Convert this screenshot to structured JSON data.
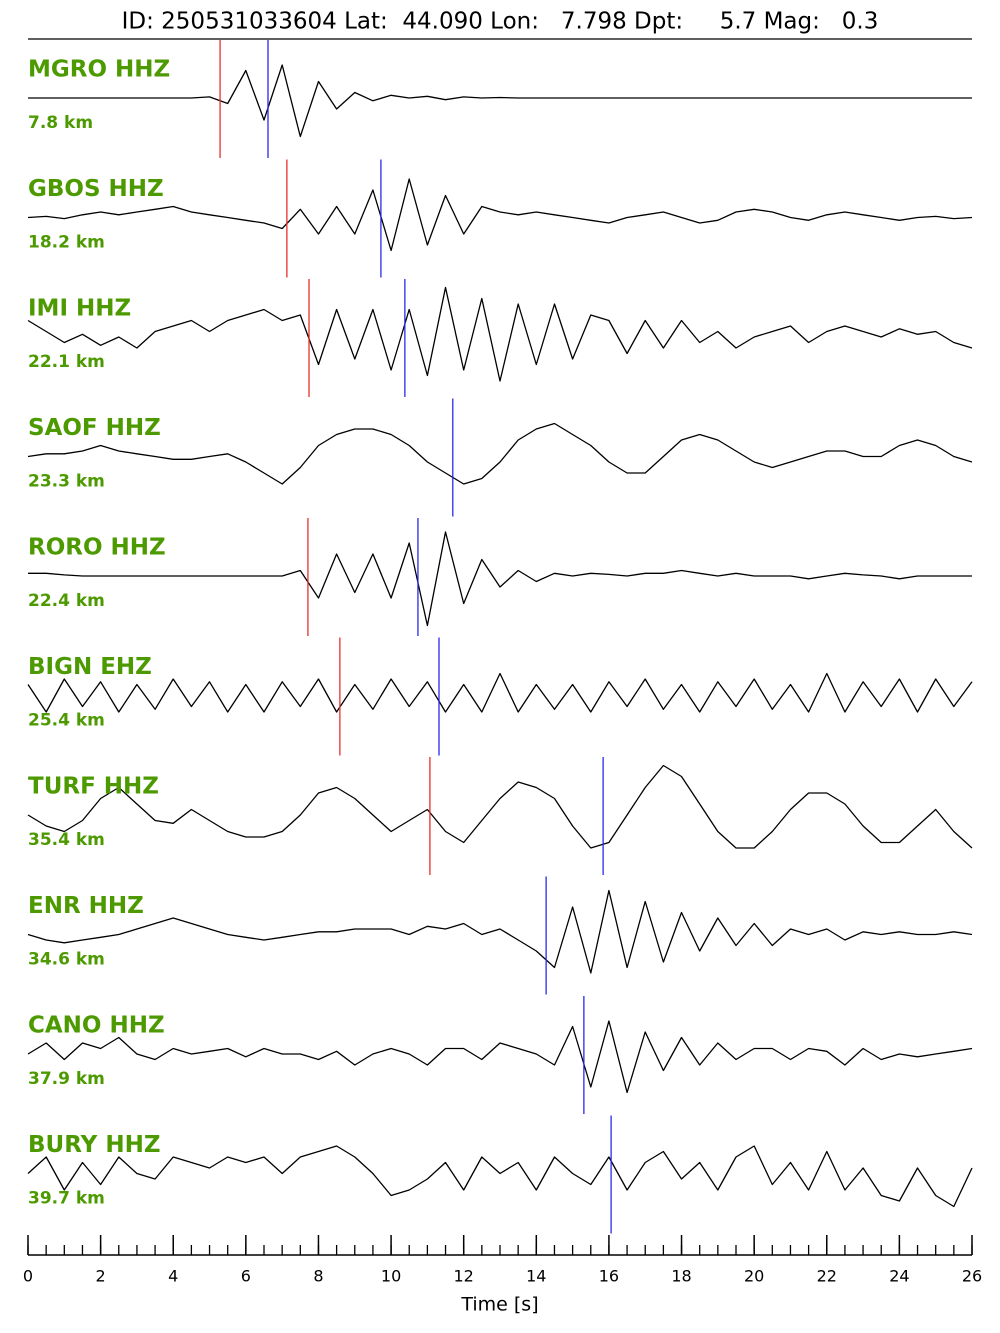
{
  "chart_data": {
    "type": "line",
    "title": "ID: 250531033604 Lat:  44.090 Lon:   7.798 Dpt:     5.7 Mag:   0.3",
    "xlabel": "Time [s]",
    "xlim": [
      0,
      26
    ],
    "xticks": [
      0,
      2,
      4,
      6,
      8,
      10,
      12,
      14,
      16,
      18,
      20,
      22,
      24,
      26
    ],
    "xminorticks": [
      0,
      0.5,
      1,
      1.5,
      2,
      2.5,
      3,
      3.5,
      4,
      4.5,
      5,
      5.5,
      6,
      6.5,
      7,
      7.5,
      8,
      8.5,
      9,
      9.5,
      10,
      10.5,
      11,
      11.5,
      12,
      12.5,
      13,
      13.5,
      14,
      14.5,
      15,
      15.5,
      16,
      16.5,
      17,
      17.5,
      18,
      18.5,
      19,
      19.5,
      20,
      20.5,
      21,
      21.5,
      22,
      22.5,
      23,
      23.5,
      24,
      24.5,
      25,
      25.5,
      26
    ],
    "x": [
      0,
      0.5,
      1,
      1.5,
      2,
      2.5,
      3,
      3.5,
      4,
      4.5,
      5,
      5.5,
      6,
      6.5,
      7,
      7.5,
      8,
      8.5,
      9,
      9.5,
      10,
      10.5,
      11,
      11.5,
      12,
      12.5,
      13,
      13.5,
      14,
      14.5,
      15,
      15.5,
      16,
      16.5,
      17,
      17.5,
      18,
      18.5,
      19,
      19.5,
      20,
      20.5,
      21,
      21.5,
      22,
      22.5,
      23,
      23.5,
      24,
      24.5,
      25,
      25.5,
      26
    ],
    "trace_color": "#000000",
    "label_color": "#4c9a00",
    "p_color": "#e8302a",
    "s_color": "#2a2ae8",
    "series": [
      {
        "name": "MGRO HHZ",
        "distance": "7.8 km",
        "p_pick": 5.29,
        "s_pick": 6.61,
        "values": [
          0,
          0,
          0,
          0,
          0,
          0,
          0,
          0,
          0,
          0,
          0.02,
          -0.1,
          0.5,
          -0.4,
          0.6,
          -0.7,
          0.3,
          -0.2,
          0.1,
          -0.05,
          0.05,
          0,
          0.03,
          -0.03,
          0.02,
          0,
          0.01,
          0,
          0,
          0,
          0,
          0,
          0,
          0,
          0,
          0,
          0,
          0,
          0,
          0,
          0,
          0,
          0,
          0,
          0,
          0,
          0,
          0,
          0,
          0,
          0,
          0,
          0
        ]
      },
      {
        "name": "GBOS HHZ",
        "distance": "18.2 km",
        "p_pick": 7.13,
        "s_pick": 9.72,
        "values": [
          0,
          0.02,
          -0.02,
          0.05,
          0.1,
          0.05,
          0.1,
          0.15,
          0.2,
          0.1,
          0.05,
          0,
          -0.05,
          -0.1,
          -0.2,
          0.15,
          -0.3,
          0.2,
          -0.3,
          0.5,
          -0.6,
          0.7,
          -0.5,
          0.4,
          -0.3,
          0.2,
          0.1,
          0.05,
          0.1,
          0.05,
          0,
          -0.05,
          -0.1,
          0,
          0.05,
          0.1,
          0,
          -0.1,
          -0.05,
          0.1,
          0.15,
          0.1,
          0,
          -0.05,
          0.05,
          0.1,
          0.05,
          0,
          -0.05,
          0,
          0.02,
          -0.02,
          0
        ]
      },
      {
        "name": "IMI HHZ",
        "distance": "22.1 km",
        "p_pick": 7.74,
        "s_pick": 10.38,
        "values": [
          0.3,
          0.1,
          -0.1,
          0.05,
          -0.15,
          0,
          -0.2,
          0.1,
          0.2,
          0.3,
          0.1,
          0.3,
          0.4,
          0.5,
          0.3,
          0.4,
          -0.5,
          0.5,
          -0.4,
          0.5,
          -0.6,
          0.5,
          -0.7,
          0.9,
          -0.6,
          0.7,
          -0.8,
          0.6,
          -0.5,
          0.6,
          -0.4,
          0.4,
          0.3,
          -0.3,
          0.3,
          -0.2,
          0.3,
          -0.1,
          0.1,
          -0.2,
          0,
          0.1,
          0.2,
          -0.1,
          0.1,
          0.2,
          0.1,
          0,
          0.15,
          0.05,
          0.1,
          -0.1,
          -0.2
        ]
      },
      {
        "name": "SAOF HHZ",
        "distance": "23.3 km",
        "p_pick": null,
        "s_pick": 11.7,
        "values": [
          0,
          0.05,
          0.05,
          0.1,
          0.2,
          0.1,
          0.05,
          0,
          -0.05,
          -0.05,
          0,
          0.05,
          -0.1,
          -0.3,
          -0.5,
          -0.2,
          0.2,
          0.4,
          0.5,
          0.5,
          0.4,
          0.2,
          -0.1,
          -0.3,
          -0.5,
          -0.4,
          -0.1,
          0.3,
          0.5,
          0.6,
          0.4,
          0.2,
          -0.1,
          -0.3,
          -0.3,
          0,
          0.3,
          0.4,
          0.3,
          0.1,
          -0.1,
          -0.2,
          -0.1,
          0,
          0.1,
          0.1,
          0,
          0,
          0.2,
          0.3,
          0.2,
          0,
          -0.1
        ]
      },
      {
        "name": "RORO HHZ",
        "distance": "22.4 km",
        "p_pick": 7.71,
        "s_pick": 10.74,
        "values": [
          0.05,
          0.05,
          0.02,
          0,
          0,
          0,
          0,
          0,
          0,
          0,
          0,
          0,
          0,
          0,
          0,
          0.1,
          -0.4,
          0.4,
          -0.3,
          0.4,
          -0.4,
          0.6,
          -0.9,
          0.8,
          -0.5,
          0.3,
          -0.2,
          0.1,
          -0.1,
          0.05,
          0,
          0.05,
          0.03,
          0,
          0.05,
          0.05,
          0.1,
          0.05,
          0,
          0.05,
          0,
          0,
          0,
          -0.05,
          0,
          0.05,
          0.02,
          0,
          -0.05,
          0,
          0,
          0,
          0
        ]
      },
      {
        "name": "BIGN EHZ",
        "distance": "25.4 km",
        "p_pick": 8.59,
        "s_pick": 11.32,
        "values": [
          0.2,
          -0.3,
          0.3,
          -0.2,
          0.25,
          -0.3,
          0.2,
          -0.25,
          0.3,
          -0.2,
          0.25,
          -0.3,
          0.2,
          -0.3,
          0.25,
          -0.2,
          0.3,
          -0.3,
          0.2,
          -0.25,
          0.3,
          -0.2,
          0.25,
          -0.3,
          0.2,
          -0.3,
          0.4,
          -0.3,
          0.2,
          -0.25,
          0.2,
          -0.3,
          0.25,
          -0.2,
          0.3,
          -0.25,
          0.2,
          -0.3,
          0.25,
          -0.2,
          0.3,
          -0.25,
          0.2,
          -0.3,
          0.4,
          -0.3,
          0.25,
          -0.2,
          0.3,
          -0.3,
          0.3,
          -0.2,
          0.25
        ]
      },
      {
        "name": "TURF HHZ",
        "distance": "35.4 km",
        "p_pick": 11.07,
        "s_pick": 15.84,
        "values": [
          0,
          -0.2,
          -0.3,
          -0.1,
          0.3,
          0.5,
          0.2,
          -0.1,
          -0.15,
          0.1,
          -0.1,
          -0.3,
          -0.4,
          -0.4,
          -0.3,
          0,
          0.4,
          0.5,
          0.3,
          0,
          -0.3,
          -0.1,
          0.1,
          -0.3,
          -0.5,
          -0.1,
          0.3,
          0.6,
          0.5,
          0.3,
          -0.2,
          -0.6,
          -0.5,
          0,
          0.5,
          0.9,
          0.7,
          0.2,
          -0.3,
          -0.6,
          -0.6,
          -0.3,
          0.1,
          0.4,
          0.4,
          0.2,
          -0.2,
          -0.5,
          -0.5,
          -0.2,
          0.1,
          -0.3,
          -0.6
        ]
      },
      {
        "name": "ENR HHZ",
        "distance": "34.6 km",
        "p_pick": null,
        "s_pick": 14.27,
        "values": [
          0,
          -0.1,
          -0.15,
          -0.1,
          -0.05,
          0,
          0.1,
          0.2,
          0.3,
          0.2,
          0.1,
          0,
          -0.05,
          -0.1,
          -0.05,
          0,
          0.05,
          0.05,
          0.1,
          0.1,
          0.1,
          0,
          0.15,
          0.1,
          0.2,
          0,
          0.1,
          -0.1,
          -0.3,
          -0.6,
          0.5,
          -0.7,
          0.8,
          -0.6,
          0.6,
          -0.5,
          0.4,
          -0.3,
          0.3,
          -0.2,
          0.2,
          -0.2,
          0.1,
          0,
          0.1,
          -0.1,
          0.05,
          0,
          0.05,
          0,
          0,
          0.05,
          0
        ]
      },
      {
        "name": "CANO HHZ",
        "distance": "37.9 km",
        "p_pick": null,
        "s_pick": 15.31,
        "values": [
          0,
          0.2,
          -0.1,
          0.2,
          0.1,
          0.3,
          0,
          -0.1,
          0.1,
          0,
          0.05,
          0.1,
          -0.05,
          0.1,
          0,
          0,
          -0.1,
          0.05,
          -0.2,
          0,
          0.1,
          0,
          -0.2,
          0.1,
          0.1,
          -0.1,
          0.2,
          0.1,
          0,
          -0.2,
          0.5,
          -0.6,
          0.6,
          -0.7,
          0.4,
          -0.3,
          0.3,
          -0.2,
          0.2,
          -0.1,
          0.1,
          0.1,
          -0.1,
          0.1,
          0.05,
          -0.2,
          0.1,
          -0.1,
          0,
          -0.05,
          0,
          0.05,
          0.1
        ]
      },
      {
        "name": "BURY HHZ",
        "distance": "39.7 km",
        "p_pick": null,
        "s_pick": 16.06,
        "values": [
          0,
          0.3,
          -0.3,
          0.2,
          -0.2,
          0.3,
          0,
          -0.1,
          0.3,
          0.2,
          0.1,
          0.3,
          0.2,
          0.3,
          0,
          0.3,
          0.4,
          0.5,
          0.3,
          0,
          -0.4,
          -0.3,
          -0.1,
          0.2,
          -0.3,
          0.3,
          0,
          0.2,
          -0.3,
          0.3,
          0,
          -0.2,
          0.3,
          -0.3,
          0.2,
          0.4,
          -0.1,
          0.2,
          -0.3,
          0.3,
          0.5,
          -0.2,
          0.2,
          -0.3,
          0.4,
          -0.3,
          0.1,
          -0.4,
          -0.5,
          0.1,
          -0.4,
          -0.6,
          0.1
        ]
      }
    ]
  }
}
